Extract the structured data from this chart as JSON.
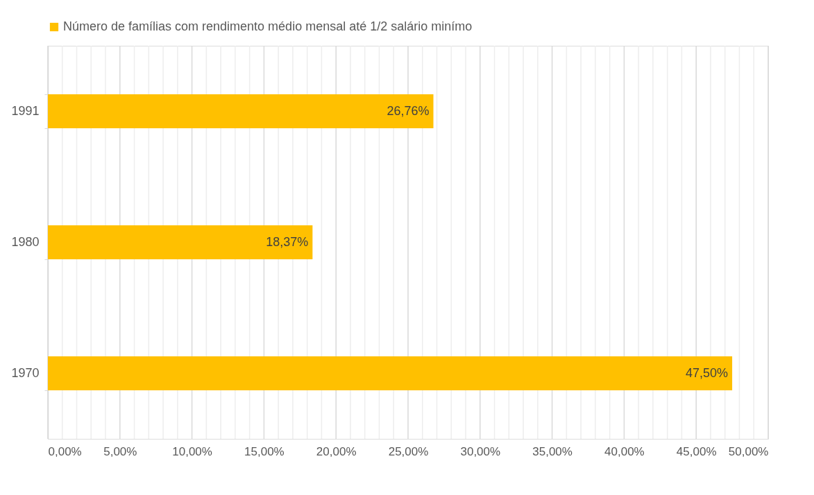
{
  "chart_data": {
    "type": "bar",
    "orientation": "horizontal",
    "categories": [
      "1991",
      "1980",
      "1970"
    ],
    "series": [
      {
        "name": "Número de famílias com rendimento médio mensal até 1/2 salário minímo",
        "color": "#ffc000",
        "values": [
          26.76,
          18.37,
          47.5
        ],
        "value_labels": [
          "26,76%",
          "18,37%",
          "47,50%"
        ]
      }
    ],
    "xlim": [
      0,
      50
    ],
    "xticks": [
      {
        "value": 0,
        "label": "0,00%"
      },
      {
        "value": 1,
        "label": null
      },
      {
        "value": 2,
        "label": null
      },
      {
        "value": 3,
        "label": null
      },
      {
        "value": 4,
        "label": null
      },
      {
        "value": 5,
        "label": "5,00%"
      },
      {
        "value": 6,
        "label": null
      },
      {
        "value": 7,
        "label": null
      },
      {
        "value": 8,
        "label": null
      },
      {
        "value": 9,
        "label": null
      },
      {
        "value": 10,
        "label": "10,00%"
      },
      {
        "value": 11,
        "label": null
      },
      {
        "value": 12,
        "label": null
      },
      {
        "value": 13,
        "label": null
      },
      {
        "value": 14,
        "label": null
      },
      {
        "value": 15,
        "label": "15,00%"
      },
      {
        "value": 16,
        "label": null
      },
      {
        "value": 17,
        "label": null
      },
      {
        "value": 18,
        "label": null
      },
      {
        "value": 19,
        "label": null
      },
      {
        "value": 20,
        "label": "20,00%"
      },
      {
        "value": 21,
        "label": null
      },
      {
        "value": 22,
        "label": null
      },
      {
        "value": 23,
        "label": null
      },
      {
        "value": 24,
        "label": null
      },
      {
        "value": 25,
        "label": "25,00%"
      },
      {
        "value": 26,
        "label": null
      },
      {
        "value": 27,
        "label": null
      },
      {
        "value": 28,
        "label": null
      },
      {
        "value": 29,
        "label": null
      },
      {
        "value": 30,
        "label": "30,00%"
      },
      {
        "value": 31,
        "label": null
      },
      {
        "value": 32,
        "label": null
      },
      {
        "value": 33,
        "label": null
      },
      {
        "value": 34,
        "label": null
      },
      {
        "value": 35,
        "label": "35,00%"
      },
      {
        "value": 36,
        "label": null
      },
      {
        "value": 37,
        "label": null
      },
      {
        "value": 38,
        "label": null
      },
      {
        "value": 39,
        "label": null
      },
      {
        "value": 40,
        "label": "40,00%"
      },
      {
        "value": 41,
        "label": null
      },
      {
        "value": 42,
        "label": null
      },
      {
        "value": 43,
        "label": null
      },
      {
        "value": 44,
        "label": null
      },
      {
        "value": 45,
        "label": "45,00%"
      },
      {
        "value": 46,
        "label": null
      },
      {
        "value": 47,
        "label": null
      },
      {
        "value": 48,
        "label": null
      },
      {
        "value": 49,
        "label": null
      },
      {
        "value": 50,
        "label": "50,00%"
      }
    ],
    "grid": "x",
    "legend": "top"
  }
}
